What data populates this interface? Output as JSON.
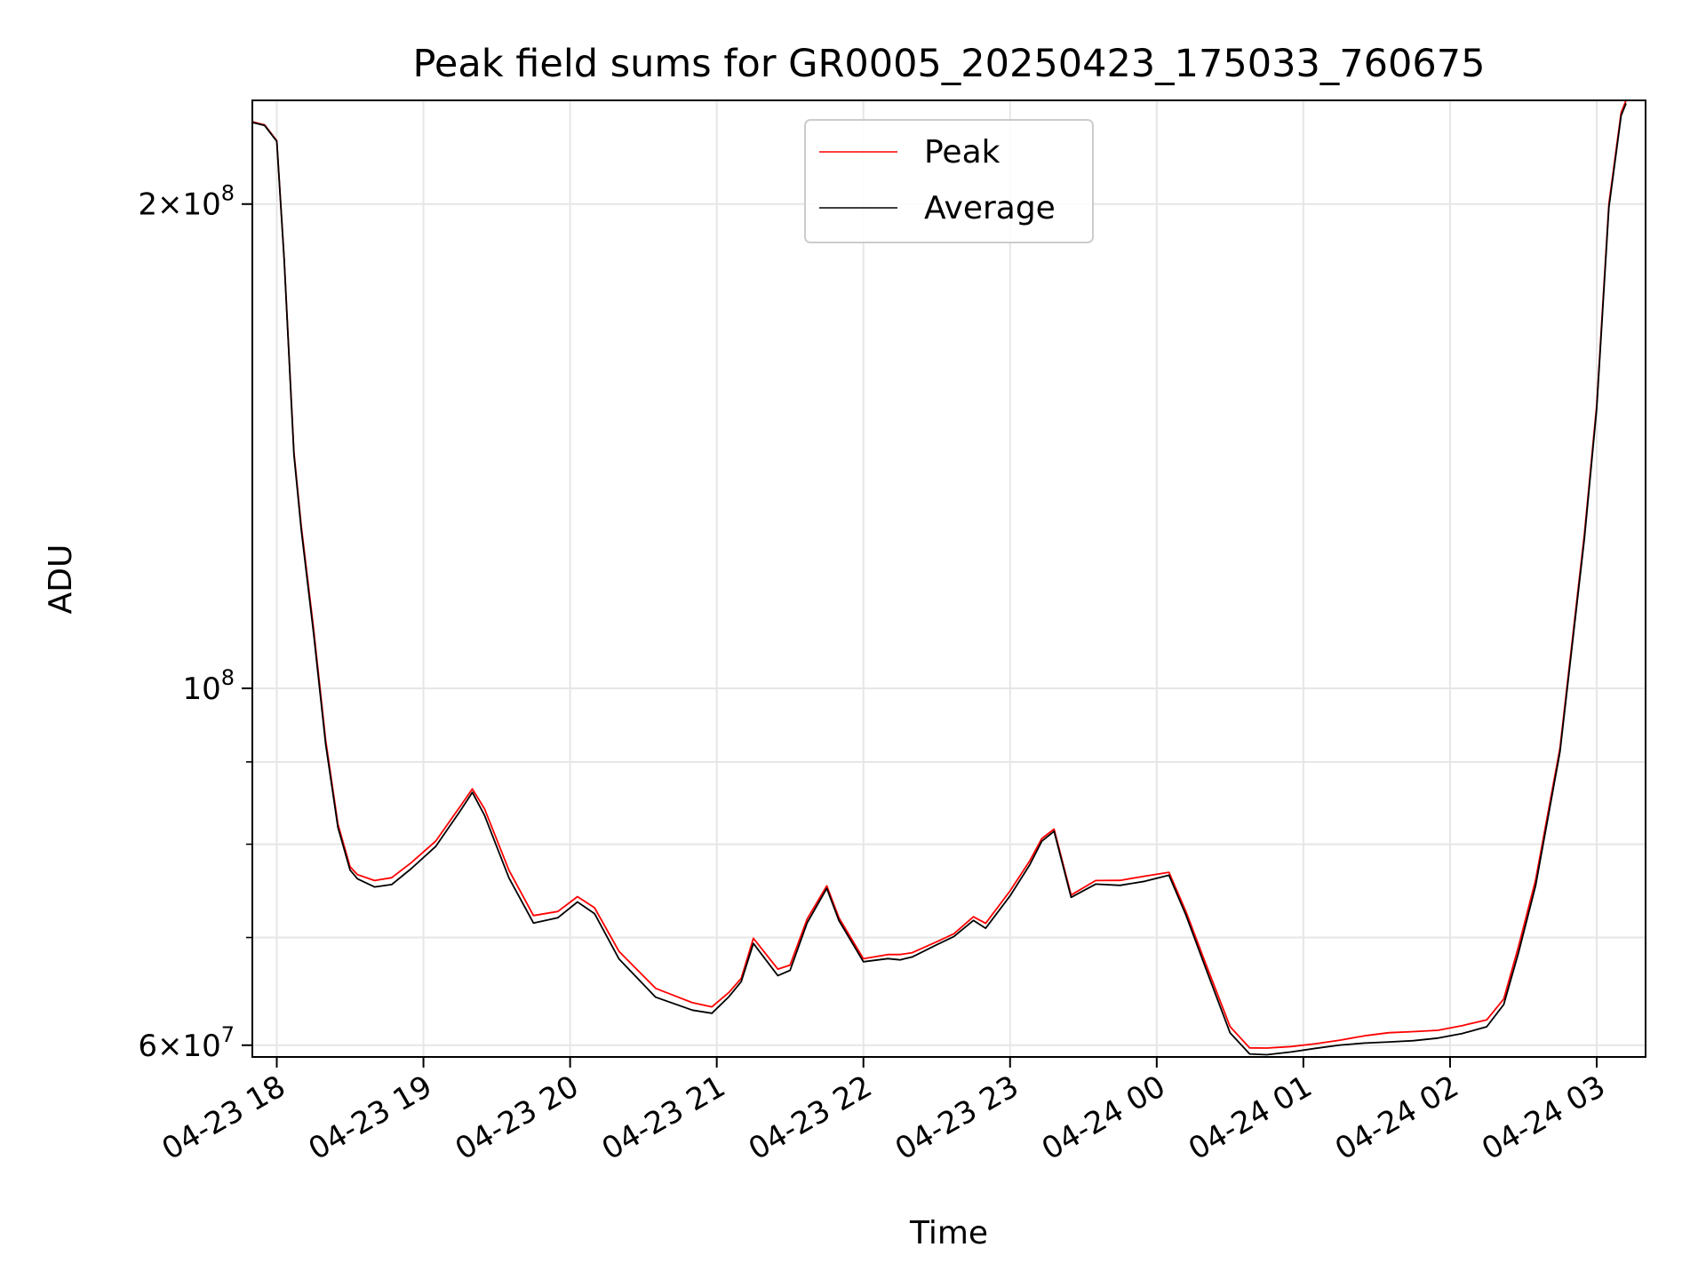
{
  "chart_data": {
    "type": "line",
    "title": "Peak field sums for GR0005_20250423_175033_760675",
    "xlabel": "Time",
    "ylabel": "ADU",
    "y_scale": "log",
    "ylim": [
      59000000,
      232000000
    ],
    "xlim": [
      "2025-04-23 17:50",
      "2025-04-24 03:20"
    ],
    "x_ticks": [
      {
        "at": "2025-04-23 18:00",
        "label": "04-23 18"
      },
      {
        "at": "2025-04-23 19:00",
        "label": "04-23 19"
      },
      {
        "at": "2025-04-23 20:00",
        "label": "04-23 20"
      },
      {
        "at": "2025-04-23 21:00",
        "label": "04-23 21"
      },
      {
        "at": "2025-04-23 22:00",
        "label": "04-23 22"
      },
      {
        "at": "2025-04-23 23:00",
        "label": "04-23 23"
      },
      {
        "at": "2025-04-24 00:00",
        "label": "04-24 00"
      },
      {
        "at": "2025-04-24 01:00",
        "label": "04-24 01"
      },
      {
        "at": "2025-04-24 02:00",
        "label": "04-24 02"
      },
      {
        "at": "2025-04-24 03:00",
        "label": "04-24 03"
      }
    ],
    "y_ticks": [
      {
        "value": 60000000,
        "base": "6×10",
        "exp": "7"
      },
      {
        "value": 100000000,
        "base": "10",
        "exp": "8"
      },
      {
        "value": 200000000,
        "base": "2×10",
        "exp": "8"
      }
    ],
    "y_minor_ticks": [
      70000000,
      80000000,
      90000000
    ],
    "grid": true,
    "legend": "top-center",
    "series": [
      {
        "name": "Peak",
        "color": "#ff0000",
        "x": [
          "2025-04-23 17:50",
          "2025-04-23 17:55",
          "2025-04-23 18:00",
          "2025-04-23 18:03",
          "2025-04-23 18:07",
          "2025-04-23 18:10",
          "2025-04-23 18:15",
          "2025-04-23 18:20",
          "2025-04-23 18:25",
          "2025-04-23 18:30",
          "2025-04-23 18:33",
          "2025-04-23 18:40",
          "2025-04-23 18:47",
          "2025-04-23 18:55",
          "2025-04-23 19:05",
          "2025-04-23 19:15",
          "2025-04-23 19:20",
          "2025-04-23 19:25",
          "2025-04-23 19:35",
          "2025-04-23 19:45",
          "2025-04-23 19:55",
          "2025-04-23 20:03",
          "2025-04-23 20:10",
          "2025-04-23 20:20",
          "2025-04-23 20:35",
          "2025-04-23 20:50",
          "2025-04-23 20:58",
          "2025-04-23 21:05",
          "2025-04-23 21:10",
          "2025-04-23 21:15",
          "2025-04-23 21:25",
          "2025-04-23 21:30",
          "2025-04-23 21:37",
          "2025-04-23 21:45",
          "2025-04-23 21:50",
          "2025-04-23 22:00",
          "2025-04-23 22:10",
          "2025-04-23 22:15",
          "2025-04-23 22:20",
          "2025-04-23 22:30",
          "2025-04-23 22:37",
          "2025-04-23 22:45",
          "2025-04-23 22:50",
          "2025-04-23 23:00",
          "2025-04-23 23:08",
          "2025-04-23 23:13",
          "2025-04-23 23:18",
          "2025-04-23 23:25",
          "2025-04-23 23:35",
          "2025-04-23 23:45",
          "2025-04-23 23:55",
          "2025-04-24 00:05",
          "2025-04-24 00:12",
          "2025-04-24 00:20",
          "2025-04-24 00:30",
          "2025-04-24 00:38",
          "2025-04-24 00:45",
          "2025-04-24 00:55",
          "2025-04-24 01:05",
          "2025-04-24 01:15",
          "2025-04-24 01:25",
          "2025-04-24 01:35",
          "2025-04-24 01:45",
          "2025-04-24 01:55",
          "2025-04-24 02:05",
          "2025-04-24 02:15",
          "2025-04-24 02:22",
          "2025-04-24 02:28",
          "2025-04-24 02:35",
          "2025-04-24 02:45",
          "2025-04-24 02:55",
          "2025-04-24 03:00",
          "2025-04-24 03:05",
          "2025-04-24 03:10",
          "2025-04-24 03:12"
        ],
        "values": [
          225000000,
          224000000,
          219000000,
          185000000,
          140000000,
          126000000,
          109000000,
          93000000,
          82500000,
          77500000,
          76500000,
          75800000,
          76200000,
          78000000,
          80500000,
          84500000,
          86500000,
          84000000,
          77000000,
          72300000,
          72800000,
          74300000,
          73000000,
          68500000,
          65000000,
          63800000,
          63500000,
          64800000,
          66000000,
          69800000,
          66800000,
          67300000,
          72000000,
          75500000,
          72000000,
          67800000,
          68200000,
          68300000,
          68600000,
          69700000,
          70400000,
          72000000,
          71300000,
          74800000,
          78200000,
          80800000,
          81800000,
          74300000,
          75800000,
          75900000,
          76500000,
          77000000,
          72700000,
          67400000,
          61500000,
          59700000,
          59800000,
          60000000,
          60200000,
          60400000,
          60700000,
          61000000,
          61200000,
          61400000,
          61800000,
          62200000,
          64000000,
          69000000,
          76000000,
          92000000,
          125000000,
          150000000,
          200000000,
          228000000,
          232000000
        ]
      },
      {
        "name": "Average",
        "color": "#000000",
        "x": [
          "2025-04-23 17:50",
          "2025-04-23 17:55",
          "2025-04-23 18:00",
          "2025-04-23 18:03",
          "2025-04-23 18:07",
          "2025-04-23 18:10",
          "2025-04-23 18:15",
          "2025-04-23 18:20",
          "2025-04-23 18:25",
          "2025-04-23 18:30",
          "2025-04-23 18:33",
          "2025-04-23 18:40",
          "2025-04-23 18:47",
          "2025-04-23 18:55",
          "2025-04-23 19:05",
          "2025-04-23 19:15",
          "2025-04-23 19:20",
          "2025-04-23 19:25",
          "2025-04-23 19:35",
          "2025-04-23 19:45",
          "2025-04-23 19:55",
          "2025-04-23 20:03",
          "2025-04-23 20:10",
          "2025-04-23 20:20",
          "2025-04-23 20:35",
          "2025-04-23 20:50",
          "2025-04-23 20:58",
          "2025-04-23 21:05",
          "2025-04-23 21:10",
          "2025-04-23 21:15",
          "2025-04-23 21:25",
          "2025-04-23 21:30",
          "2025-04-23 21:37",
          "2025-04-23 21:45",
          "2025-04-23 21:50",
          "2025-04-23 22:00",
          "2025-04-23 22:10",
          "2025-04-23 22:15",
          "2025-04-23 22:20",
          "2025-04-23 22:30",
          "2025-04-23 22:37",
          "2025-04-23 22:45",
          "2025-04-23 22:50",
          "2025-04-23 23:00",
          "2025-04-23 23:08",
          "2025-04-23 23:13",
          "2025-04-23 23:18",
          "2025-04-23 23:25",
          "2025-04-23 23:35",
          "2025-04-23 23:45",
          "2025-04-23 23:55",
          "2025-04-24 00:05",
          "2025-04-24 00:12",
          "2025-04-24 00:20",
          "2025-04-24 00:30",
          "2025-04-24 00:38",
          "2025-04-24 00:45",
          "2025-04-24 00:55",
          "2025-04-24 01:05",
          "2025-04-24 01:15",
          "2025-04-24 01:25",
          "2025-04-24 01:35",
          "2025-04-24 01:45",
          "2025-04-24 01:55",
          "2025-04-24 02:05",
          "2025-04-24 02:15",
          "2025-04-24 02:22",
          "2025-04-24 02:28",
          "2025-04-24 02:35",
          "2025-04-24 02:45",
          "2025-04-24 02:55",
          "2025-04-24 03:00",
          "2025-04-24 03:05",
          "2025-04-24 03:10",
          "2025-04-24 03:12"
        ],
        "values": [
          224800000,
          223800000,
          218800000,
          184500000,
          139500000,
          125500000,
          108500000,
          92500000,
          82000000,
          77000000,
          76000000,
          75200000,
          75600000,
          77400000,
          79800000,
          83800000,
          86000000,
          83300000,
          76300000,
          71600000,
          72100000,
          73600000,
          72300000,
          67800000,
          64300000,
          63200000,
          62900000,
          64300000,
          65600000,
          69300000,
          66300000,
          66900000,
          71600000,
          75100000,
          71600000,
          67500000,
          67900000,
          67900000,
          68200000,
          69300000,
          70000000,
          71600000,
          70900000,
          74400000,
          77800000,
          80400000,
          81400000,
          74000000,
          75500000,
          75500000,
          76000000,
          76600000,
          72200000,
          66900000,
          61000000,
          59300000,
          59300000,
          59500000,
          59700000,
          59900000,
          60100000,
          60300000,
          60500000,
          60700000,
          61000000,
          61500000,
          63500000,
          68500000,
          75500000,
          91500000,
          124000000,
          149000000,
          199000000,
          227000000,
          231000000
        ]
      }
    ]
  }
}
